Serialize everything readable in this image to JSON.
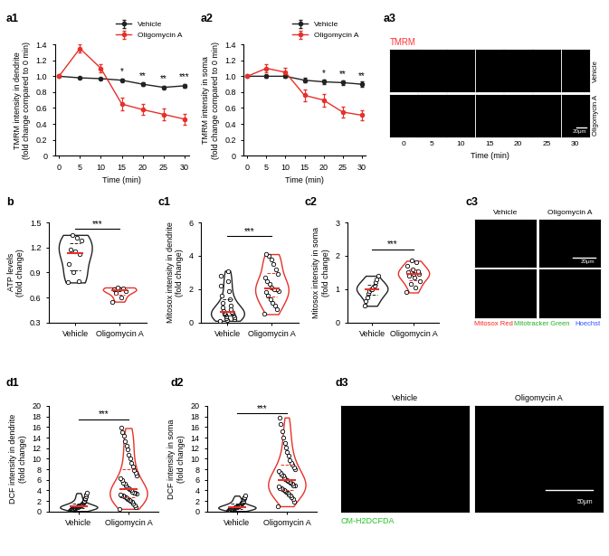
{
  "chart_data": [
    {
      "panel_label": "a1",
      "type": "line",
      "ylabel": "TMRM intensity in dendrite\n(fold change compared to 0 min)",
      "xlabel": "Time (min)",
      "x": [
        0,
        5,
        10,
        15,
        20,
        25,
        30
      ],
      "xlim": [
        -1,
        31
      ],
      "xticks": [
        0,
        5,
        10,
        15,
        20,
        25,
        30
      ],
      "ylim": [
        0,
        1.4
      ],
      "yticks": [
        0,
        0.2,
        0.4,
        0.6,
        0.8,
        {
          "value": 1,
          "label": "1.0"
        },
        1.2,
        1.4
      ],
      "legend": "upper right",
      "series": [
        {
          "name": "Vehicle",
          "color": "#222222",
          "marker": "o",
          "values": [
            1.0,
            0.98,
            0.97,
            0.95,
            0.9,
            0.86,
            0.88
          ],
          "errors": [
            0,
            0.01,
            0.015,
            0.02,
            0.02,
            0.02,
            0.02
          ]
        },
        {
          "name": "Oligomycin A",
          "color": "#e8302a",
          "marker": "o",
          "values": [
            1.0,
            1.35,
            1.1,
            0.65,
            0.58,
            0.52,
            0.46
          ],
          "errors": [
            0,
            0.05,
            0.05,
            0.08,
            0.07,
            0.07,
            0.07
          ]
        }
      ],
      "annotations": [
        {
          "x": 15,
          "y": 1.0,
          "text": "*"
        },
        {
          "x": 20,
          "y": 0.95,
          "text": "**"
        },
        {
          "x": 25,
          "y": 0.91,
          "text": "**"
        },
        {
          "x": 30,
          "y": 0.93,
          "text": "***"
        }
      ]
    },
    {
      "panel_label": "a2",
      "type": "line",
      "ylabel": "TMRM intensity in soma\n(fold change compared to 0 min)",
      "xlabel": "Time (min)",
      "x": [
        0,
        5,
        10,
        15,
        20,
        25,
        30
      ],
      "xlim": [
        -1,
        31
      ],
      "xticks": [
        0,
        5,
        10,
        15,
        20,
        25,
        30
      ],
      "ylim": [
        0,
        1.4
      ],
      "yticks": [
        0,
        0.2,
        0.4,
        0.6,
        0.8,
        {
          "value": 1,
          "label": "1.0"
        },
        1.2,
        1.4
      ],
      "legend": "upper right",
      "series": [
        {
          "name": "Vehicle",
          "color": "#222222",
          "marker": "o",
          "values": [
            1.0,
            1.0,
            1.0,
            0.95,
            0.93,
            0.92,
            0.9
          ],
          "errors": [
            0,
            0.02,
            0.02,
            0.03,
            0.03,
            0.03,
            0.03
          ]
        },
        {
          "name": "Oligomycin A",
          "color": "#e8302a",
          "marker": "o",
          "values": [
            1.0,
            1.1,
            1.05,
            0.76,
            0.7,
            0.55,
            0.51
          ],
          "errors": [
            0,
            0.05,
            0.06,
            0.07,
            0.08,
            0.07,
            0.06
          ]
        }
      ],
      "annotations": [
        {
          "x": 20,
          "y": 0.98,
          "text": "*"
        },
        {
          "x": 25,
          "y": 0.97,
          "text": "**"
        },
        {
          "x": 30,
          "y": 0.95,
          "text": "**"
        }
      ]
    },
    {
      "panel_label": "b",
      "type": "violin",
      "ylabel": "ATP levels\n(fold change)",
      "categories": [
        "Vehicle",
        "Oligomycin A"
      ],
      "colors": [
        "#222222",
        "#e8302a"
      ],
      "ylim": [
        0.3,
        1.5
      ],
      "yticks": [
        0.3,
        0.6,
        0.9,
        1.2,
        1.5
      ],
      "values": [
        [
          0.78,
          0.8,
          0.9,
          1.0,
          1.12,
          1.15,
          1.17,
          1.28,
          1.32,
          1.35
        ],
        [
          0.55,
          0.6,
          0.65,
          0.68,
          0.7,
          0.7,
          0.71,
          0.72
        ]
      ],
      "significance": {
        "text": "***",
        "y": 1.42
      }
    },
    {
      "panel_label": "c1",
      "type": "violin",
      "ylabel": "Mitosox intensity in dendrite\n(fold change)",
      "categories": [
        "Vehicle",
        "Oligomycin A"
      ],
      "colors": [
        "#222222",
        "#e8302a"
      ],
      "ylim": [
        0,
        6
      ],
      "yticks": [
        0,
        2,
        4,
        6
      ],
      "values": [
        [
          0.1,
          0.15,
          0.2,
          0.25,
          0.3,
          0.35,
          0.4,
          0.45,
          0.5,
          0.55,
          0.6,
          0.6,
          0.65,
          0.7,
          0.8,
          0.9,
          1.0,
          1.2,
          1.4,
          1.6,
          1.9,
          2.2,
          2.5,
          2.8,
          3.1
        ],
        [
          0.5,
          0.8,
          1.0,
          1.2,
          1.4,
          1.6,
          1.8,
          1.9,
          2.0,
          2.0,
          2.1,
          2.3,
          2.5,
          2.7,
          2.9,
          3.2,
          3.5,
          3.8,
          4.0,
          4.1
        ]
      ],
      "significance": {
        "text": "***",
        "y": 5.2
      }
    },
    {
      "panel_label": "c2",
      "type": "violin",
      "ylabel": "Mitosox intensity in soma\n(fold change)",
      "categories": [
        "Vehicle",
        "Oligomycin A"
      ],
      "colors": [
        "#222222",
        "#e8302a"
      ],
      "ylim": [
        0,
        3
      ],
      "yticks": [
        0,
        1,
        2,
        3
      ],
      "values": [
        [
          0.5,
          0.65,
          0.75,
          0.85,
          0.95,
          1.0,
          1.0,
          1.05,
          1.1,
          1.2,
          1.3,
          1.4
        ],
        [
          0.9,
          1.05,
          1.15,
          1.25,
          1.35,
          1.4,
          1.45,
          1.45,
          1.5,
          1.55,
          1.6,
          1.7,
          1.8,
          1.85
        ]
      ],
      "significance": {
        "text": "***",
        "y": 2.2
      }
    },
    {
      "panel_label": "d1",
      "type": "violin",
      "ylabel": "DCF intensity in dendrite\n(fold change)",
      "categories": [
        "Vehicle",
        "Oligomycin A"
      ],
      "colors": [
        "#222222",
        "#e8302a"
      ],
      "ylim": [
        0,
        20
      ],
      "yticks": [
        0,
        2,
        4,
        6,
        8,
        10,
        12,
        14,
        16,
        18,
        20
      ],
      "values": [
        [
          0.1,
          0.2,
          0.3,
          0.35,
          0.4,
          0.45,
          0.5,
          0.55,
          0.6,
          0.65,
          0.7,
          0.7,
          0.75,
          0.8,
          0.85,
          0.9,
          0.9,
          0.95,
          1.0,
          1.0,
          1.05,
          1.1,
          1.15,
          1.2,
          1.3,
          1.4,
          1.5,
          1.6,
          1.7,
          1.9,
          2.1,
          2.3,
          2.6,
          2.9,
          3.2,
          3.5
        ],
        [
          0.5,
          0.9,
          1.2,
          1.5,
          1.8,
          2.0,
          2.2,
          2.4,
          2.5,
          2.7,
          2.8,
          3.0,
          3.1,
          3.2,
          3.4,
          3.5,
          3.6,
          3.8,
          4.0,
          4.2,
          4.4,
          4.6,
          4.9,
          5.2,
          5.5,
          5.9,
          6.3,
          6.8,
          7.3,
          7.9,
          8.5,
          9.2,
          10.0,
          10.8,
          11.7,
          12.5,
          13.4,
          14.3,
          15.1,
          15.8
        ]
      ],
      "significance": {
        "text": "***",
        "y": 17.5
      }
    },
    {
      "panel_label": "d2",
      "type": "violin",
      "ylabel": "DCF intensity in soma\n(fold change)",
      "categories": [
        "Vehicle",
        "Oligomycin A"
      ],
      "colors": [
        "#222222",
        "#e8302a"
      ],
      "ylim": [
        0,
        20
      ],
      "yticks": [
        0,
        2,
        4,
        6,
        8,
        10,
        12,
        14,
        16,
        18,
        20
      ],
      "values": [
        [
          0.1,
          0.2,
          0.25,
          0.3,
          0.35,
          0.4,
          0.45,
          0.5,
          0.5,
          0.55,
          0.6,
          0.65,
          0.7,
          0.7,
          0.75,
          0.8,
          0.85,
          0.9,
          0.9,
          0.95,
          1.0,
          1.0,
          1.05,
          1.1,
          1.2,
          1.3,
          1.4,
          1.5,
          1.6,
          1.7,
          1.9,
          2.1,
          2.3,
          2.5,
          2.7,
          3.0
        ],
        [
          1.0,
          1.8,
          2.3,
          2.7,
          3.0,
          3.3,
          3.5,
          3.7,
          3.9,
          4.0,
          4.2,
          4.4,
          4.5,
          4.7,
          4.9,
          5.0,
          5.2,
          5.4,
          5.6,
          5.8,
          6.0,
          6.2,
          6.5,
          6.8,
          7.0,
          7.3,
          7.6,
          8.0,
          8.4,
          8.8,
          9.2,
          9.8,
          10.5,
          11.3,
          12.2,
          13.0,
          14.0,
          15.2,
          16.5,
          17.8
        ]
      ],
      "significance": {
        "text": "***",
        "y": 18.6
      }
    }
  ],
  "images": [
    {
      "panel_label": "a3",
      "label": "TMRM",
      "color": "#ff3030",
      "rows": [
        "Vehicle",
        "Oligomycin A"
      ],
      "columns": [
        0,
        5,
        10,
        15,
        20,
        25,
        30
      ],
      "xlabel": "Time (min)",
      "scale_bar": "20μm"
    },
    {
      "panel_label": "c3",
      "columns": [
        "Vehicle",
        "Oligomycin A"
      ],
      "channels": [
        "Mitosox Red",
        "Mitotracker Green",
        "Hoechst"
      ],
      "colors": [
        "#ff2020",
        "#20b020",
        "#3050ff"
      ],
      "scale_bar": "20μm"
    },
    {
      "panel_label": "d3",
      "columns": [
        "Vehicle",
        "Oligomycin A"
      ],
      "label": "CM-H2DCFDA",
      "color": "#20c020",
      "scale_bar": "50μm"
    }
  ]
}
